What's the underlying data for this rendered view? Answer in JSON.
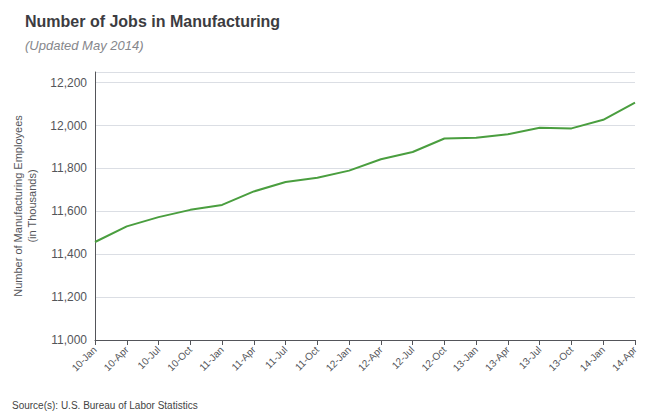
{
  "chart_data": {
    "type": "line",
    "title": "Number of Jobs in Manufacturing",
    "subtitle": "(Updated May 2014)",
    "ylabel": "Number of Manufacturing Employees\n(in Thousands)",
    "source": "Source(s): U.S. Bureau of Labor Statistics",
    "categories": [
      "10-Jan",
      "10-Apr",
      "10-Jul",
      "10-Oct",
      "11-Jan",
      "11-Apr",
      "11-Jul",
      "11-Oct",
      "12-Jan",
      "12-Apr",
      "12-Jul",
      "12-Oct",
      "13-Jan",
      "13-Apr",
      "13-Jul",
      "13-Oct",
      "14-Jan",
      "14-Apr"
    ],
    "values": [
      11457,
      11530,
      11573,
      11607,
      11630,
      11693,
      11737,
      11757,
      11790,
      11843,
      11877,
      11940,
      11943,
      11960,
      11990,
      11987,
      12027,
      12107
    ],
    "color": "#4a9e3f",
    "ylim": [
      11000,
      12250
    ],
    "yticks": [
      {
        "value": 11000,
        "label": "11,000"
      },
      {
        "value": 11200,
        "label": "11,200"
      },
      {
        "value": 11400,
        "label": "11,400"
      },
      {
        "value": 11600,
        "label": "11,600"
      },
      {
        "value": 11800,
        "label": "11,800"
      },
      {
        "value": 12000,
        "label": "12,000"
      },
      {
        "value": 12200,
        "label": "12,200"
      }
    ],
    "grid": true
  }
}
